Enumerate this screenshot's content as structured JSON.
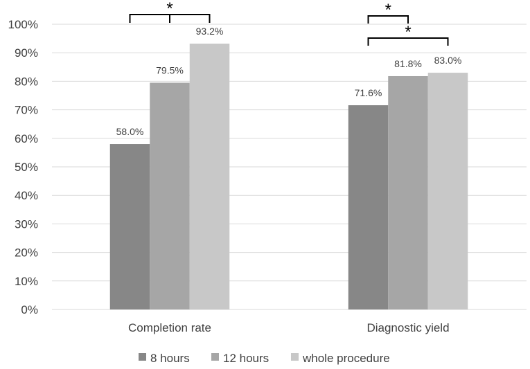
{
  "chart_data": {
    "type": "bar",
    "categories": [
      "Completion rate",
      "Diagnostic yield"
    ],
    "series": [
      {
        "name": "8 hours",
        "values": [
          58.0,
          71.6
        ],
        "color": "#878787"
      },
      {
        "name": "12 hours",
        "values": [
          79.5,
          81.8
        ],
        "color": "#a6a6a6"
      },
      {
        "name": "whole procedure",
        "values": [
          93.2,
          83.0
        ],
        "color": "#c8c8c8"
      }
    ],
    "data_labels": [
      [
        "58.0%",
        "71.6%"
      ],
      [
        "79.5%",
        "81.8%"
      ],
      [
        "93.2%",
        "83.0%"
      ]
    ],
    "ylim": [
      0,
      100
    ],
    "yticks": [
      0,
      10,
      20,
      30,
      40,
      50,
      60,
      70,
      80,
      90,
      100
    ],
    "ytick_labels": [
      "0%",
      "10%",
      "20%",
      "30%",
      "40%",
      "50%",
      "60%",
      "70%",
      "80%",
      "90%",
      "100%"
    ],
    "grid": true,
    "legend_position": "bottom",
    "significance": [
      {
        "category": 0,
        "from_series": 0,
        "to_series": 2,
        "with_mid_tick": true,
        "label": "*"
      },
      {
        "category": 1,
        "from_series": 0,
        "to_series": 1,
        "with_mid_tick": false,
        "label": "*"
      },
      {
        "category": 1,
        "from_series": 0,
        "to_series": 2,
        "with_mid_tick": false,
        "label": "*"
      }
    ]
  }
}
